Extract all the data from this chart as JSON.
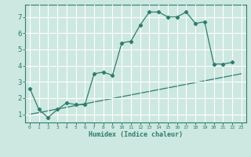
{
  "title": "",
  "xlabel": "Humidex (Indice chaleur)",
  "ylabel": "",
  "background_color": "#cde8e0",
  "grid_color": "#ffffff",
  "line_color": "#2e7d6e",
  "xlim": [
    -0.5,
    23.5
  ],
  "ylim": [
    0.5,
    7.75
  ],
  "x_ticks": [
    0,
    1,
    2,
    3,
    4,
    5,
    6,
    7,
    8,
    9,
    10,
    11,
    12,
    13,
    14,
    15,
    16,
    17,
    18,
    19,
    20,
    21,
    22,
    23
  ],
  "y_ticks": [
    1,
    2,
    3,
    4,
    5,
    6,
    7
  ],
  "series1_x": [
    0,
    1,
    2,
    3,
    4,
    5,
    6,
    7,
    8,
    9,
    10,
    11,
    12,
    13,
    14,
    15,
    16,
    17,
    18,
    19,
    20,
    21,
    22
  ],
  "series1_y": [
    2.6,
    1.3,
    0.8,
    1.3,
    1.7,
    1.6,
    1.6,
    3.5,
    3.6,
    3.4,
    5.4,
    5.5,
    6.5,
    7.3,
    7.3,
    7.0,
    7.0,
    7.3,
    6.6,
    6.7,
    4.1,
    4.1,
    4.2
  ],
  "series2_x": [
    0,
    23
  ],
  "series2_y": [
    1.0,
    3.5
  ]
}
